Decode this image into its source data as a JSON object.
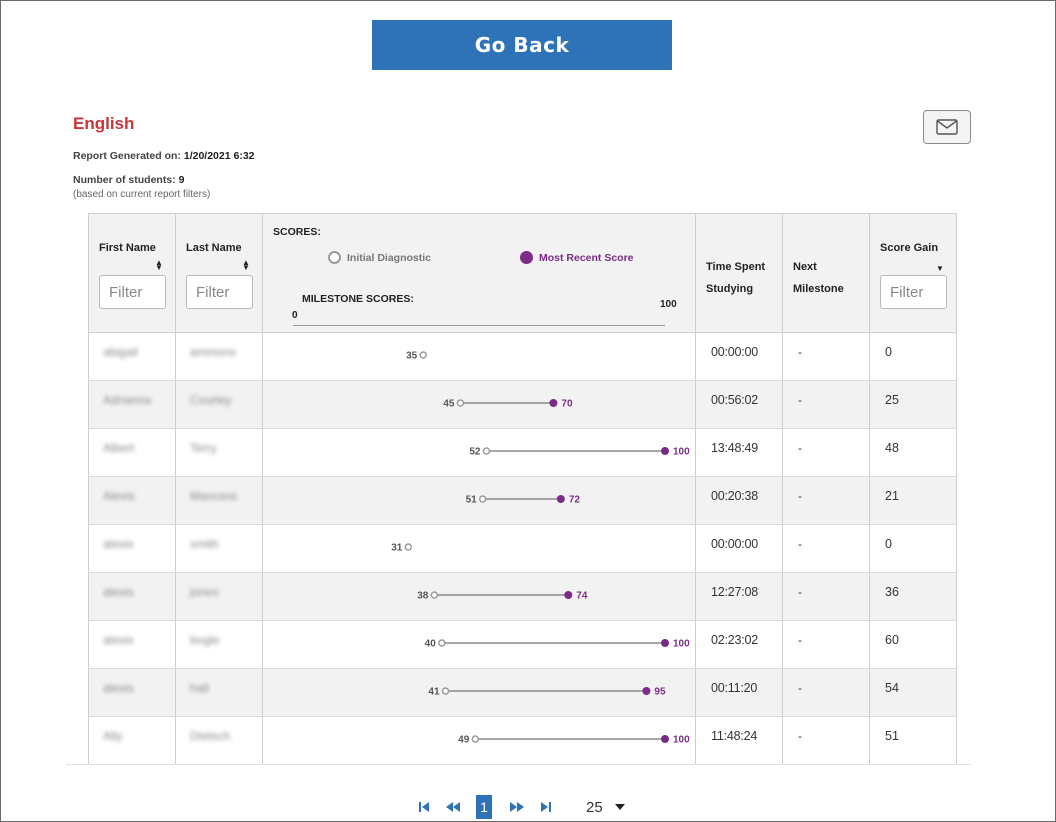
{
  "header": {
    "back_label": "Go Back"
  },
  "report": {
    "subject": "English",
    "generated_label": "Report Generated on:",
    "generated_value": "1/20/2021 6:32",
    "students_label": "Number of students:",
    "students_value": "9",
    "students_note": "(based on current report filters)",
    "email_icon": "envelope-icon"
  },
  "columns": {
    "first_name": "First Name",
    "last_name": "Last Name",
    "scores": "SCORES:",
    "legend_initial": "Initial Diagnostic",
    "legend_recent": "Most Recent Score",
    "milestone_scores": "MILESTONE SCORES:",
    "axis_min": "0",
    "axis_max": "100",
    "time_line1": "Time Spent",
    "time_line2": "Studying",
    "next_line1": "Next",
    "next_line2": "Milestone",
    "score_gain": "Score Gain",
    "filter_placeholder": "Filter"
  },
  "colors": {
    "accent": "#2e73b8",
    "subject": "#c8363a",
    "recent": "#7b2c86",
    "initial": "#9a9a9a"
  },
  "rows": [
    {
      "first": "abigail",
      "last": "ammons",
      "initial": 35,
      "recent": null,
      "time": "00:00:00",
      "next": "-",
      "gain": "0"
    },
    {
      "first": "Adrianna",
      "last": "Courley",
      "initial": 45,
      "recent": 70,
      "time": "00:56:02",
      "next": "-",
      "gain": "25"
    },
    {
      "first": "Albert",
      "last": "Terry",
      "initial": 52,
      "recent": 100,
      "time": "13:48:49",
      "next": "-",
      "gain": "48"
    },
    {
      "first": "Alexis",
      "last": "Mancera",
      "initial": 51,
      "recent": 72,
      "time": "00:20:38",
      "next": "-",
      "gain": "21"
    },
    {
      "first": "alexis",
      "last": "smith",
      "initial": 31,
      "recent": null,
      "time": "00:00:00",
      "next": "-",
      "gain": "0"
    },
    {
      "first": "alexis",
      "last": "jones",
      "initial": 38,
      "recent": 74,
      "time": "12:27:08",
      "next": "-",
      "gain": "36"
    },
    {
      "first": "alexis",
      "last": "bogle",
      "initial": 40,
      "recent": 100,
      "time": "02:23:02",
      "next": "-",
      "gain": "60"
    },
    {
      "first": "alexis",
      "last": "hall",
      "initial": 41,
      "recent": 95,
      "time": "00:11:20",
      "next": "-",
      "gain": "54"
    },
    {
      "first": "Ally",
      "last": "Dietsch",
      "initial": 49,
      "recent": 100,
      "time": "11:48:24",
      "next": "-",
      "gain": "51"
    }
  ],
  "pagination": {
    "current_page": "1",
    "page_size": "25"
  }
}
